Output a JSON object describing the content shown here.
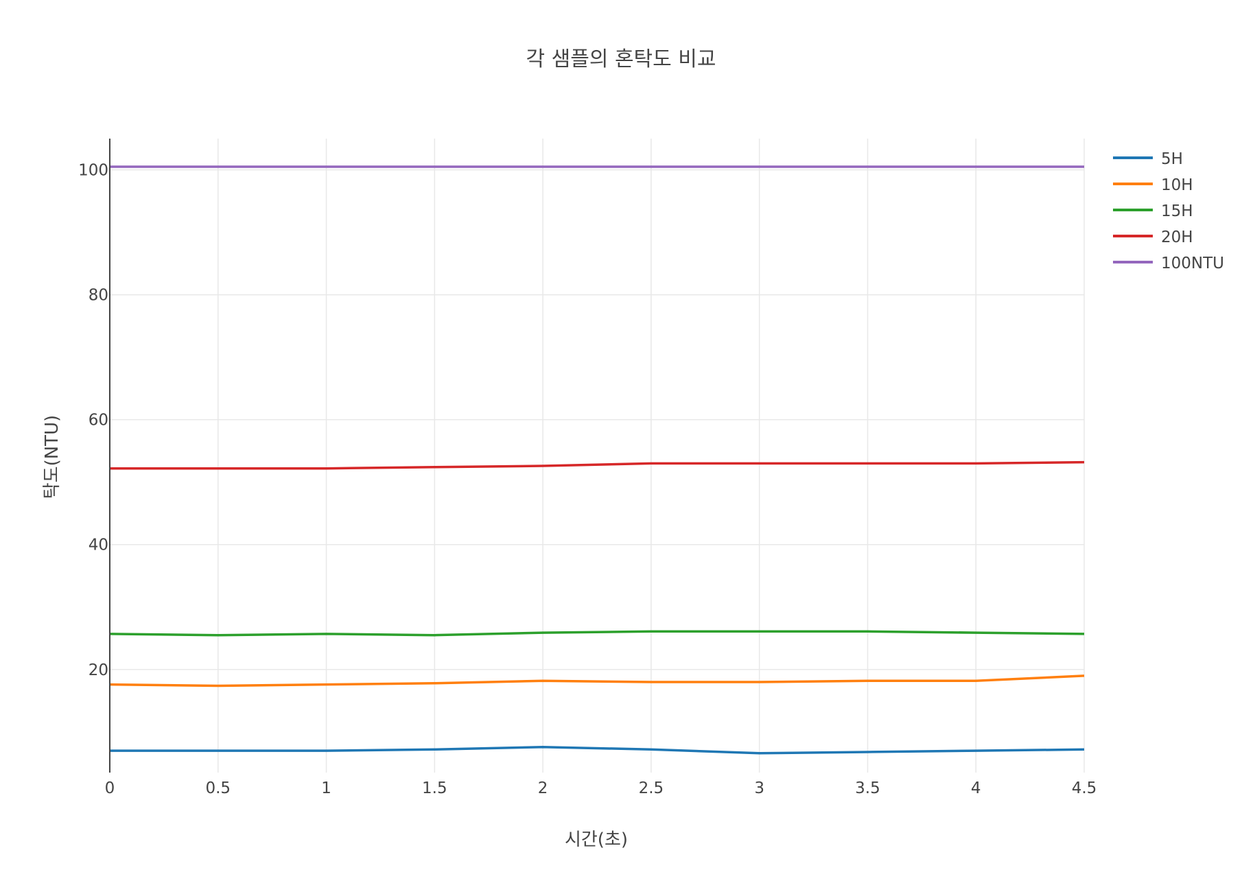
{
  "chart_data": {
    "type": "line",
    "title": "각 샘플의 혼탁도 비교",
    "xlabel": "시간(초)",
    "ylabel": "탁도(NTU)",
    "x": [
      0,
      0.5,
      1,
      1.5,
      2,
      2.5,
      3,
      3.5,
      4,
      4.5
    ],
    "x_ticks": [
      "0",
      "0.5",
      "1",
      "1.5",
      "2",
      "2.5",
      "3",
      "3.5",
      "4",
      "4.5"
    ],
    "y_ticks": [
      "20",
      "40",
      "60",
      "80",
      "100"
    ],
    "xlim": [
      0,
      4.5
    ],
    "ylim": [
      3.5,
      105
    ],
    "grid": true,
    "legend_position": "top-right",
    "series": [
      {
        "name": "5H",
        "color": "#1f77b4",
        "values": [
          7.0,
          7.0,
          7.0,
          7.2,
          7.6,
          7.2,
          6.6,
          6.8,
          7.0,
          7.2
        ]
      },
      {
        "name": "10H",
        "color": "#ff7f0e",
        "values": [
          17.6,
          17.4,
          17.6,
          17.8,
          18.2,
          18.0,
          18.0,
          18.2,
          18.2,
          19.0
        ]
      },
      {
        "name": "15H",
        "color": "#2ca02c",
        "values": [
          25.7,
          25.5,
          25.7,
          25.5,
          25.9,
          26.1,
          26.1,
          26.1,
          25.9,
          25.7
        ]
      },
      {
        "name": "20H",
        "color": "#d62728",
        "values": [
          52.2,
          52.2,
          52.2,
          52.4,
          52.6,
          53.0,
          53.0,
          53.0,
          53.0,
          53.2
        ]
      },
      {
        "name": "100NTU",
        "color": "#9467bd",
        "values": [
          100.5,
          100.5,
          100.5,
          100.5,
          100.5,
          100.5,
          100.5,
          100.5,
          100.5,
          100.5
        ]
      }
    ]
  }
}
